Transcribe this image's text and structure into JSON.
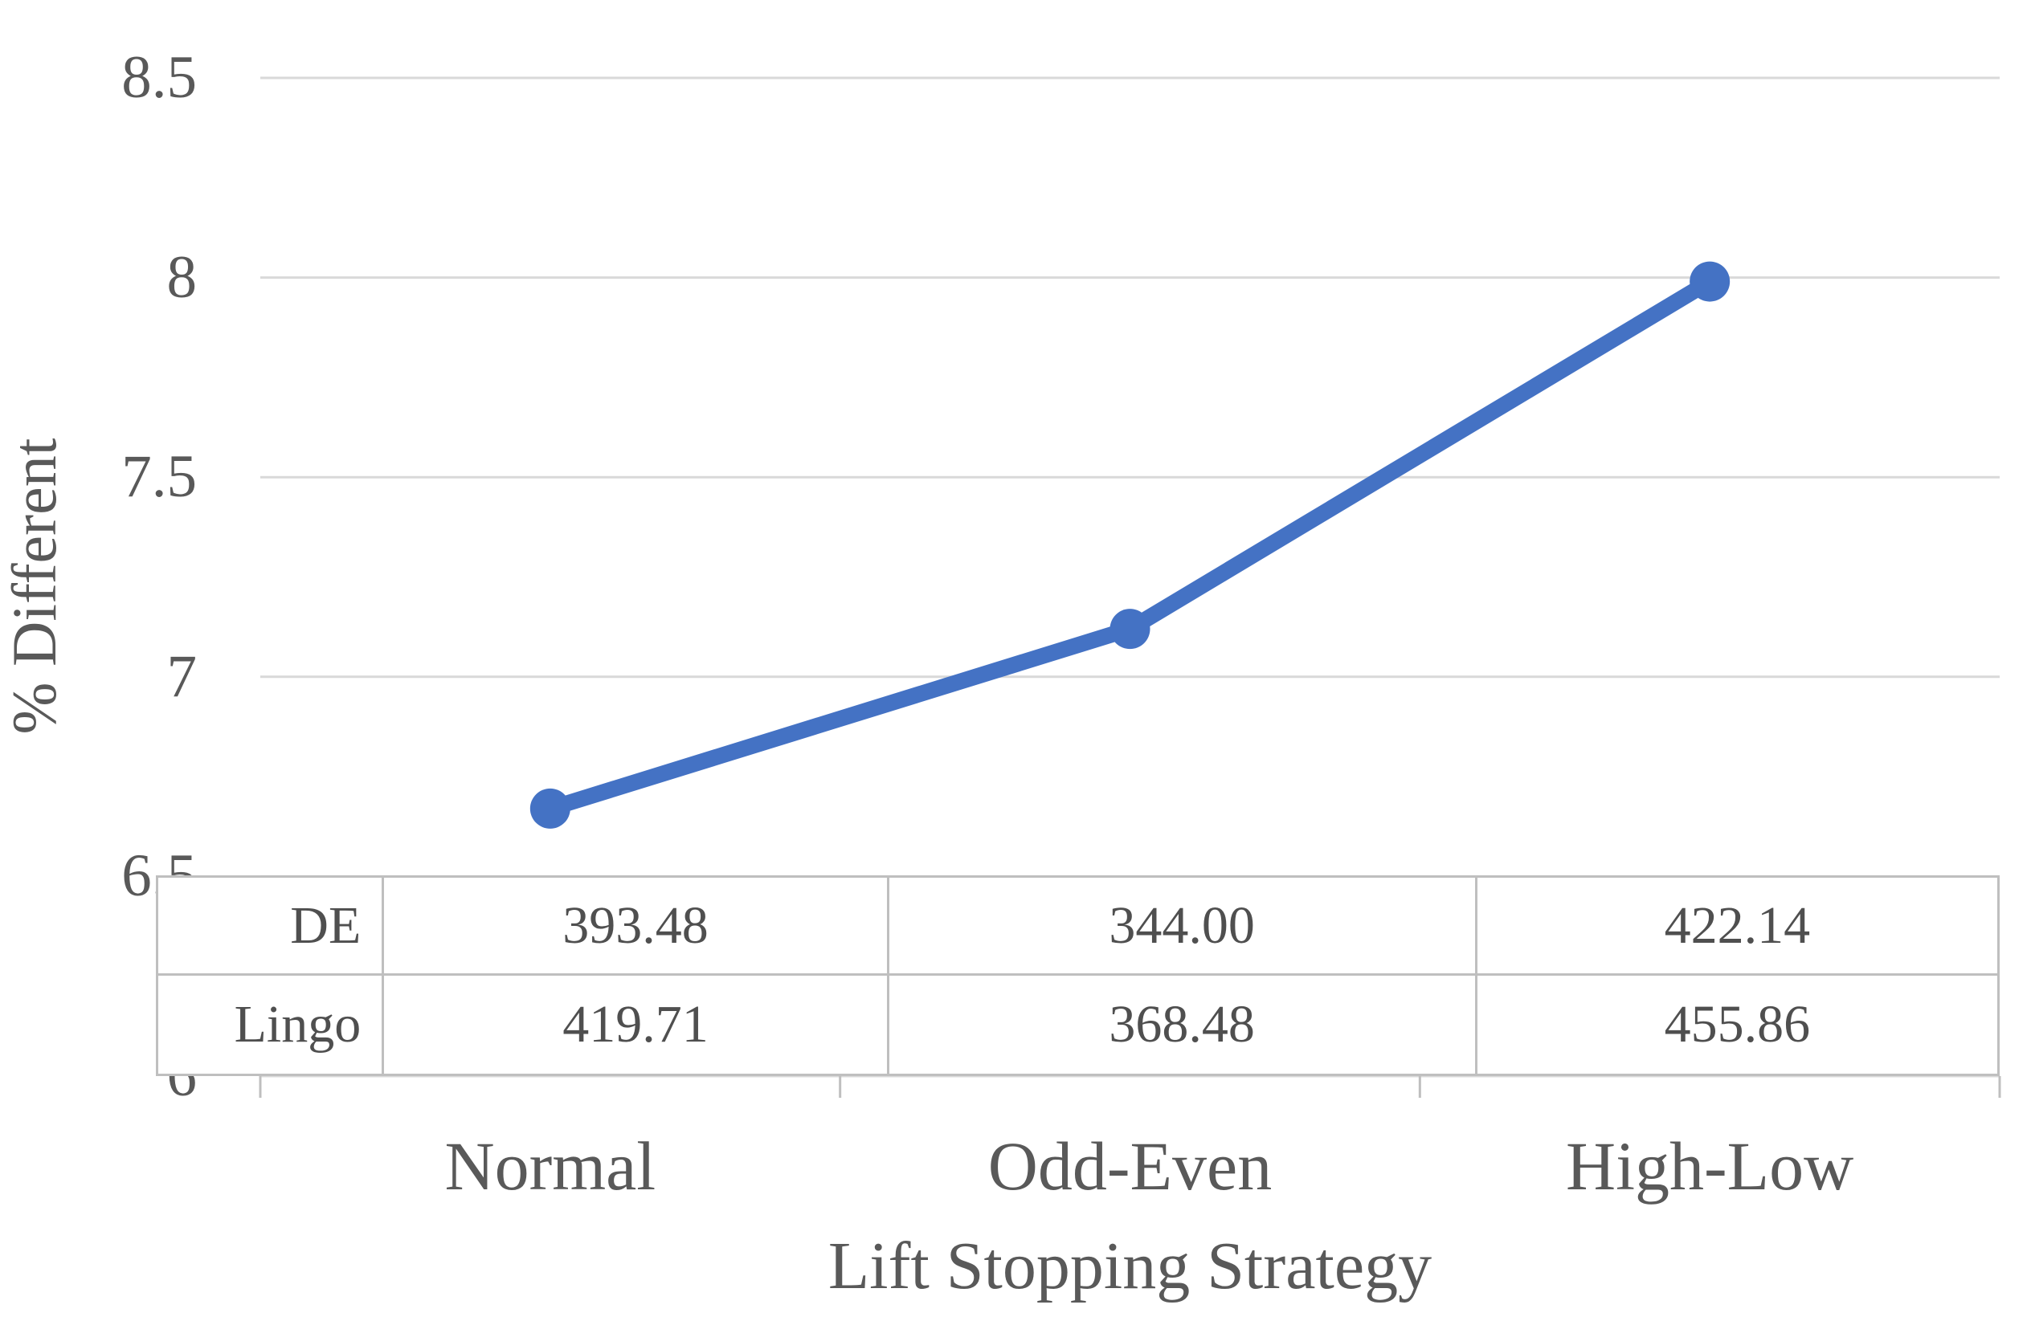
{
  "chart_data": {
    "type": "line",
    "title": "",
    "xlabel": "Lift Stopping Strategy",
    "ylabel": "% Different",
    "categories": [
      "Normal",
      "Odd-Even",
      "High-Low"
    ],
    "series": [
      {
        "name": "% Different",
        "values": [
          6.67,
          7.12,
          7.99
        ]
      }
    ],
    "data_table": {
      "rows": [
        {
          "label": "DE",
          "values": [
            "393.48",
            "344.00",
            "422.14"
          ]
        },
        {
          "label": "Lingo",
          "values": [
            "419.71",
            "368.48",
            "455.86"
          ]
        }
      ]
    },
    "ylim": [
      6,
      8.5
    ],
    "yticks": [
      8.5,
      8,
      7.5,
      7,
      6.5,
      6
    ],
    "grid": true,
    "legend_position": "none",
    "colors": {
      "line": "#4472C4",
      "marker": "#4472C4",
      "gridline": "#d9d9d9",
      "table_border": "#bfbfbf",
      "text": "#595959"
    }
  }
}
